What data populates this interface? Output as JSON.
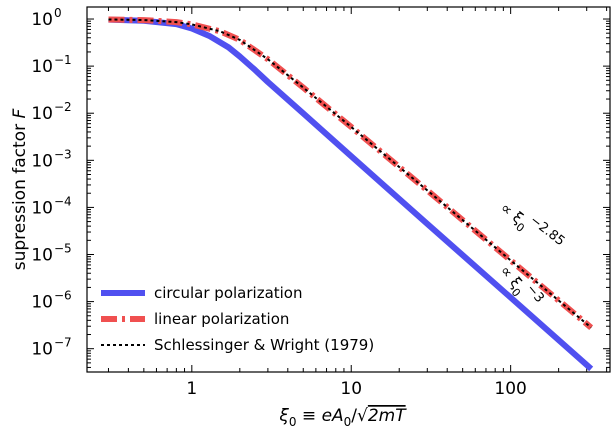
{
  "chart_data": {
    "type": "line",
    "xlabel": "ξ₀ ≡ eA₀/√(2mT)",
    "ylabel": "supression factor F",
    "xscale": "log",
    "yscale": "log",
    "xlim": [
      0.22,
      420
    ],
    "ylim": [
      3.2e-08,
      1.8
    ],
    "xticks": [
      {
        "value": 1,
        "label": "1"
      },
      {
        "value": 10,
        "label": "10"
      },
      {
        "value": 100,
        "label": "100"
      }
    ],
    "yticks": [
      {
        "value": 1,
        "base": "10",
        "exp": "0"
      },
      {
        "value": 0.1,
        "base": "10",
        "exp": "−1"
      },
      {
        "value": 0.01,
        "base": "10",
        "exp": "−2"
      },
      {
        "value": 0.001,
        "base": "10",
        "exp": "−3"
      },
      {
        "value": 0.0001,
        "base": "10",
        "exp": "−4"
      },
      {
        "value": 1e-05,
        "base": "10",
        "exp": "−5"
      },
      {
        "value": 1e-06,
        "base": "10",
        "exp": "−6"
      },
      {
        "value": 1e-07,
        "base": "10",
        "exp": "−7"
      }
    ],
    "grid": false,
    "legend_position": "lower-left",
    "series": [
      {
        "name": "circular polarization",
        "color": "#5050f0",
        "style": "solid",
        "x": [
          0.3,
          0.5,
          0.8,
          1.0,
          1.3,
          1.7,
          2.0,
          2.5,
          3.0,
          5.0,
          10,
          30,
          100,
          320
        ],
        "y": [
          0.97,
          0.92,
          0.78,
          0.63,
          0.43,
          0.25,
          0.16,
          0.082,
          0.046,
          0.0099,
          0.00122,
          4.47e-05,
          1.22e-06,
          3.73e-08
        ]
      },
      {
        "name": "linear polarization",
        "color": "#f05050",
        "style": "dashdot",
        "x": [
          0.3,
          0.5,
          0.8,
          1.0,
          1.5,
          2.0,
          3.0,
          5.0,
          10,
          30,
          100,
          320
        ],
        "y": [
          0.98,
          0.95,
          0.86,
          0.77,
          0.55,
          0.36,
          0.14,
          0.035,
          0.0051,
          0.00023,
          7.5e-06,
          2.8e-07
        ]
      },
      {
        "name": "Schlessinger & Wright (1979)",
        "color": "#000000",
        "style": "dotted",
        "x": [
          0.3,
          0.5,
          0.8,
          1.0,
          1.5,
          2.0,
          3.0,
          5.0,
          10,
          30,
          100,
          320
        ],
        "y": [
          0.98,
          0.95,
          0.86,
          0.77,
          0.55,
          0.36,
          0.14,
          0.035,
          0.0051,
          0.00023,
          7.5e-06,
          2.8e-07
        ]
      }
    ],
    "annotations": [
      {
        "text": "∝ ξ₀^−2.85",
        "near": "linear polarization",
        "x": 85,
        "y": 9e-05
      },
      {
        "text": "∝ ξ₀^−3",
        "near": "circular polarization",
        "x": 85,
        "y": 4.5e-06
      }
    ]
  }
}
